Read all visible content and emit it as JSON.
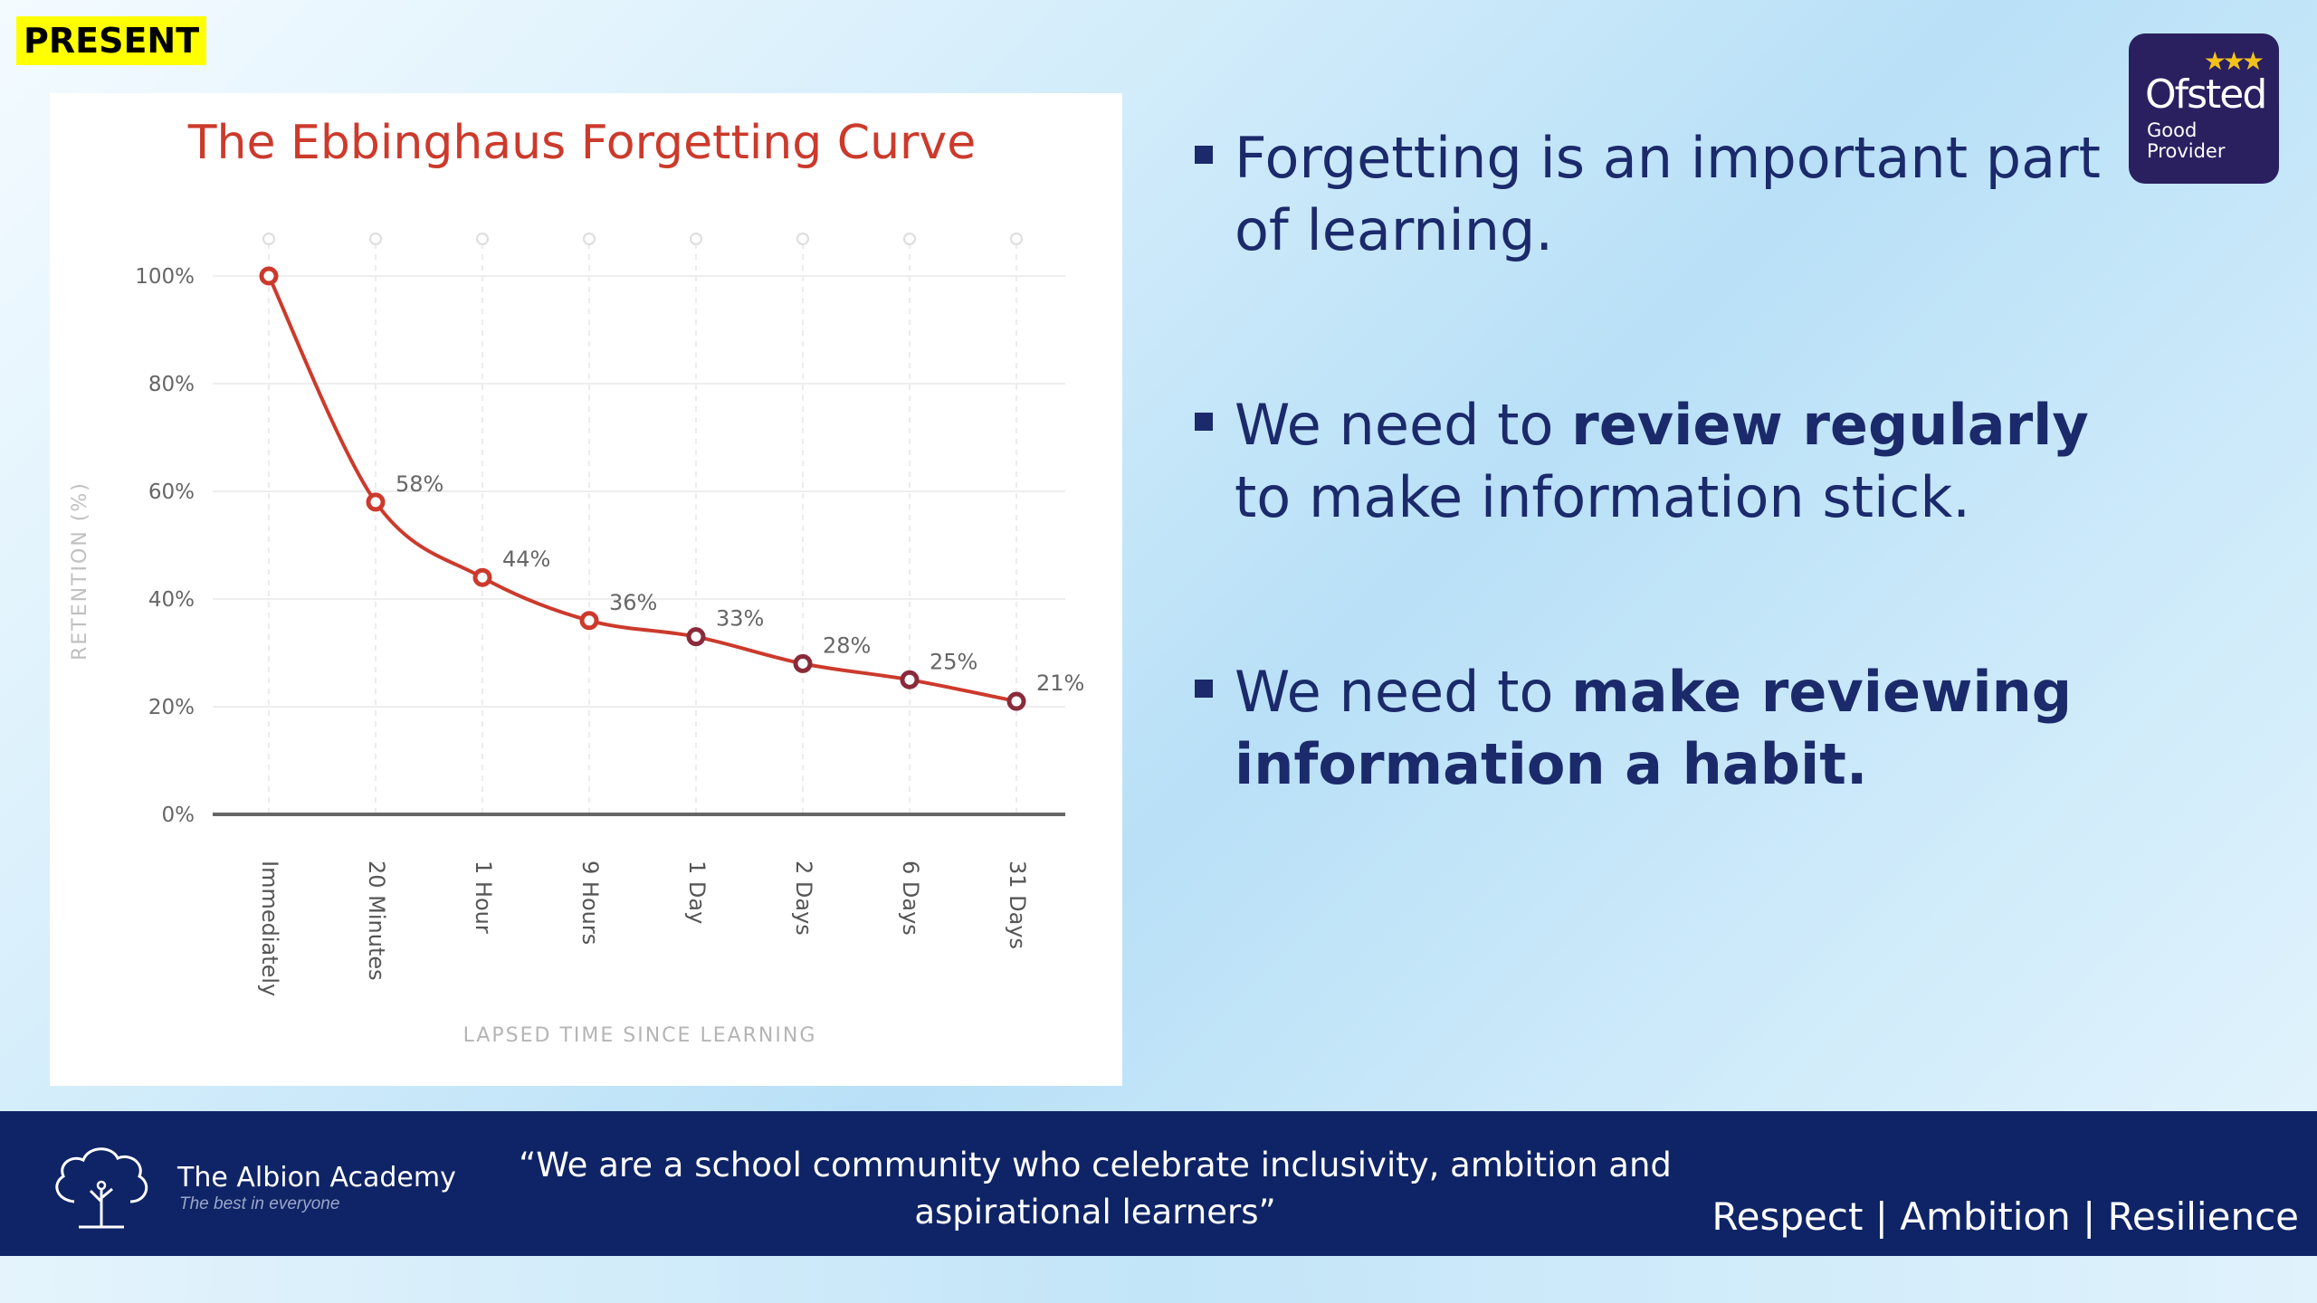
{
  "tag": "PRESENT",
  "chart_data": {
    "type": "line",
    "title": "The Ebbinghaus Forgetting Curve",
    "xlabel": "LAPSED TIME SINCE LEARNING",
    "ylabel": "RETENTION (%)",
    "categories": [
      "Immediately",
      "20 Minutes",
      "1 Hour",
      "9 Hours",
      "1 Day",
      "2 Days",
      "6 Days",
      "31 Days"
    ],
    "values": [
      100,
      58,
      44,
      36,
      33,
      28,
      25,
      21
    ],
    "point_labels": [
      "",
      "58%",
      "44%",
      "36%",
      "33%",
      "28%",
      "25%",
      "21%"
    ],
    "yticks": [
      "0%",
      "20%",
      "40%",
      "60%",
      "80%",
      "100%"
    ],
    "ylim": [
      0,
      100
    ],
    "line_color": "#cc3a2c",
    "grid": true
  },
  "bullets": [
    {
      "parts": [
        {
          "text": "Forgetting is an important part of learning.",
          "bold": false
        }
      ]
    },
    {
      "parts": [
        {
          "text": "We need to ",
          "bold": false
        },
        {
          "text": "review regularly",
          "bold": true
        },
        {
          "text": " to make information stick.",
          "bold": false
        }
      ]
    },
    {
      "parts": [
        {
          "text": "We need to ",
          "bold": false
        },
        {
          "text": "make reviewing information a habit.",
          "bold": true
        }
      ]
    }
  ],
  "ofsted": {
    "brand": "Ofsted",
    "rating_line1": "Good",
    "rating_line2": "Provider",
    "stars": "★★★"
  },
  "footer": {
    "academy_name": "The Albion Academy",
    "academy_tagline": "The best in everyone",
    "motto_line1": "“We are a school community who celebrate inclusivity, ambition and",
    "motto_line2": "aspirational learners”",
    "values": "Respect | Ambition | Resilience"
  }
}
